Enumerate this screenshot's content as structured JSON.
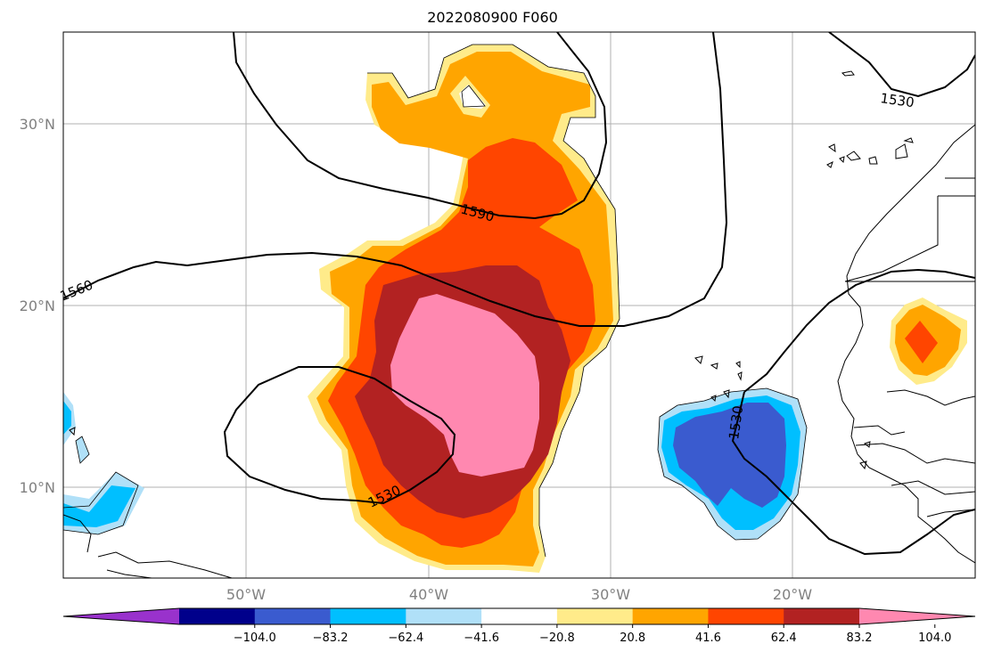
{
  "title": "2022080900 F060",
  "map": {
    "lat_labels": [
      "30°N",
      "20°N",
      "10°N"
    ],
    "lon_labels": [
      "50°W",
      "40°W",
      "30°W",
      "20°W"
    ],
    "contour_labels": [
      "1590",
      "1560",
      "1530",
      "1530",
      "1530"
    ]
  },
  "colorbar": {
    "ticks": [
      "−104.0",
      "−83.2",
      "−62.4",
      "−41.6",
      "−20.8",
      "20.8",
      "41.6",
      "62.4",
      "83.2",
      "104.0"
    ],
    "colors": [
      "#9932cc",
      "#00008b",
      "#3a5bcf",
      "#00bfff",
      "#b0e0f8",
      "#ffffff",
      "#ffeb8a",
      "#ffa500",
      "#ff4500",
      "#b22222",
      "#ff88b0"
    ]
  }
}
